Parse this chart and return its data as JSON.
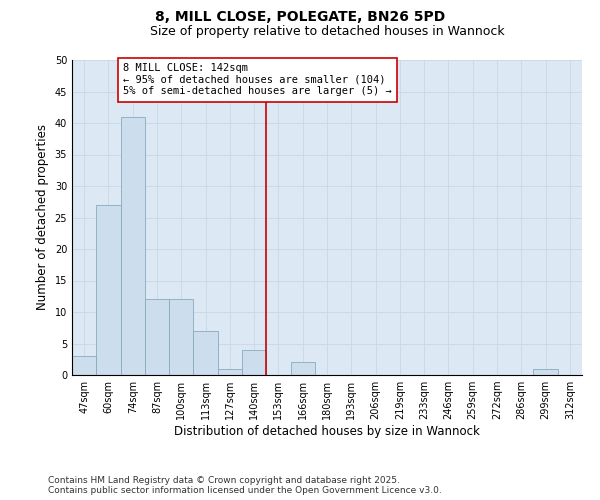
{
  "title": "8, MILL CLOSE, POLEGATE, BN26 5PD",
  "subtitle": "Size of property relative to detached houses in Wannock",
  "xlabel": "Distribution of detached houses by size in Wannock",
  "ylabel": "Number of detached properties",
  "categories": [
    "47sqm",
    "60sqm",
    "74sqm",
    "87sqm",
    "100sqm",
    "113sqm",
    "127sqm",
    "140sqm",
    "153sqm",
    "166sqm",
    "180sqm",
    "193sqm",
    "206sqm",
    "219sqm",
    "233sqm",
    "246sqm",
    "259sqm",
    "272sqm",
    "286sqm",
    "299sqm",
    "312sqm"
  ],
  "values": [
    3,
    27,
    41,
    12,
    12,
    7,
    1,
    4,
    0,
    2,
    0,
    0,
    0,
    0,
    0,
    0,
    0,
    0,
    0,
    1,
    0
  ],
  "bar_color": "#ccdded",
  "bar_edge_color": "#88aabb",
  "vline_x_index": 7.5,
  "vline_color": "#cc0000",
  "annotation_text": "8 MILL CLOSE: 142sqm\n← 95% of detached houses are smaller (104)\n5% of semi-detached houses are larger (5) →",
  "annotation_box_color": "#cc0000",
  "ylim": [
    0,
    50
  ],
  "yticks": [
    0,
    5,
    10,
    15,
    20,
    25,
    30,
    35,
    40,
    45,
    50
  ],
  "grid_color": "#c8d8e8",
  "background_color": "#dce8f4",
  "fig_background_color": "#ffffff",
  "footnote": "Contains HM Land Registry data © Crown copyright and database right 2025.\nContains public sector information licensed under the Open Government Licence v3.0.",
  "title_fontsize": 10,
  "subtitle_fontsize": 9,
  "label_fontsize": 8.5,
  "tick_fontsize": 7,
  "annotation_fontsize": 7.5,
  "footnote_fontsize": 6.5
}
